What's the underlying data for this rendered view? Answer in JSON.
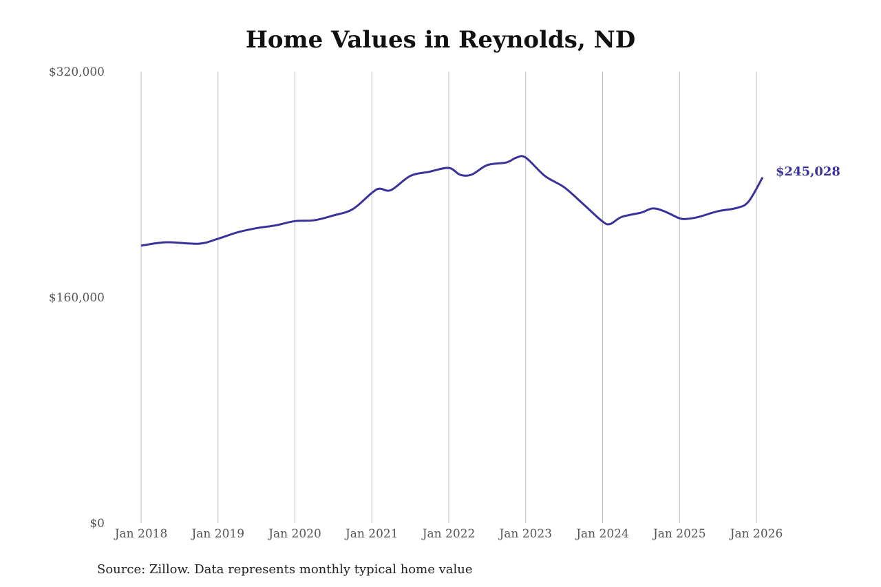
{
  "chart_data": {
    "type": "line",
    "title": "Home Values in Reynolds, ND",
    "source": "Source: Zillow. Data represents monthly typical home value",
    "xlabel": "",
    "ylabel": "",
    "ylim": [
      0,
      320000
    ],
    "xlim": [
      2018,
      2026.08
    ],
    "y_ticks": [
      {
        "value": 0,
        "label": "$0"
      },
      {
        "value": 160000,
        "label": "$160,000"
      },
      {
        "value": 320000,
        "label": "$320,000"
      }
    ],
    "x_ticks": [
      {
        "value": 2018,
        "label": "Jan 2018"
      },
      {
        "value": 2019,
        "label": "Jan 2019"
      },
      {
        "value": 2020,
        "label": "Jan 2020"
      },
      {
        "value": 2021,
        "label": "Jan 2021"
      },
      {
        "value": 2022,
        "label": "Jan 2022"
      },
      {
        "value": 2023,
        "label": "Jan 2023"
      },
      {
        "value": 2024,
        "label": "Jan 2024"
      },
      {
        "value": 2025,
        "label": "Jan 2025"
      },
      {
        "value": 2026,
        "label": "Jan 2026"
      }
    ],
    "grid": "vertical",
    "series": [
      {
        "name": "Typical home value",
        "color": "#3b3299",
        "end_label": "$245,028",
        "x": [
          2018.0,
          2018.33,
          2018.75,
          2019.0,
          2019.25,
          2019.5,
          2019.75,
          2020.0,
          2020.25,
          2020.5,
          2020.75,
          2021.0,
          2021.1,
          2021.25,
          2021.5,
          2021.75,
          2022.0,
          2022.15,
          2022.3,
          2022.5,
          2022.75,
          2022.88,
          2023.0,
          2023.25,
          2023.5,
          2023.75,
          2024.0,
          2024.1,
          2024.25,
          2024.5,
          2024.65,
          2024.8,
          2025.0,
          2025.1,
          2025.25,
          2025.5,
          2025.75,
          2025.9,
          2026.08
        ],
        "y": [
          196600,
          199000,
          198000,
          201500,
          206000,
          209000,
          211000,
          214000,
          214600,
          218000,
          222400,
          234000,
          237000,
          236000,
          246000,
          249000,
          251700,
          246800,
          247000,
          253700,
          255600,
          259000,
          259000,
          246000,
          238000,
          226000,
          213700,
          212000,
          217000,
          220000,
          223000,
          221000,
          216000,
          215600,
          217000,
          221000,
          223400,
          228000,
          245028
        ]
      }
    ]
  }
}
